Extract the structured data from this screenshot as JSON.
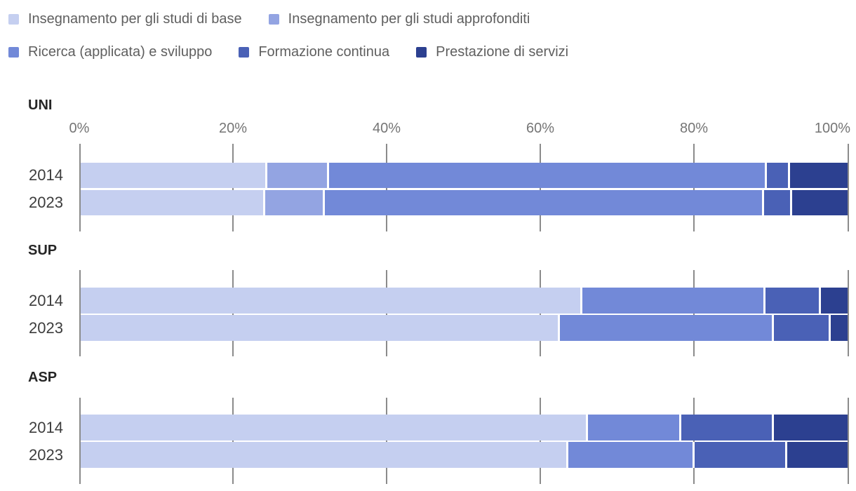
{
  "legend": {
    "rows": [
      [
        0,
        1
      ],
      [
        2,
        3,
        4
      ]
    ]
  },
  "axis": {
    "tick_labels": [
      "0%",
      "20%",
      "40%",
      "60%",
      "80%",
      "100%"
    ],
    "tick_values": [
      0,
      20,
      40,
      60,
      80,
      100
    ]
  },
  "chart_data": {
    "type": "bar",
    "orientation": "horizontal",
    "stacked": true,
    "unit": "%",
    "xlim": [
      0,
      100
    ],
    "grid": true,
    "legend_position": "top",
    "series": [
      {
        "name": "Insegnamento per gli studi di base",
        "color": "#c5cff0"
      },
      {
        "name": "Insegnamento per gli studi approfonditi",
        "color": "#93a4e2"
      },
      {
        "name": "Ricerca (applicata) e sviluppo",
        "color": "#7289d8"
      },
      {
        "name": "Formazione continua",
        "color": "#4a61b6"
      },
      {
        "name": "Prestazione di servizi",
        "color": "#2c4090"
      }
    ],
    "groups": [
      {
        "label": "UNI",
        "rows": [
          {
            "year": "2014",
            "values": [
              24.2,
              8.0,
              57.0,
              3.0,
              7.8
            ]
          },
          {
            "year": "2023",
            "values": [
              23.9,
              7.8,
              57.2,
              3.6,
              7.5
            ]
          }
        ]
      },
      {
        "label": "SUP",
        "rows": [
          {
            "year": "2014",
            "values": [
              65.2,
              0,
              23.8,
              7.3,
              3.7
            ]
          },
          {
            "year": "2023",
            "values": [
              62.3,
              0,
              27.8,
              7.4,
              2.5
            ]
          }
        ]
      },
      {
        "label": "ASP",
        "rows": [
          {
            "year": "2014",
            "values": [
              65.9,
              0,
              12.2,
              12.0,
              9.9
            ]
          },
          {
            "year": "2023",
            "values": [
              63.4,
              0,
              16.4,
              12.1,
              8.1
            ]
          }
        ]
      }
    ]
  }
}
